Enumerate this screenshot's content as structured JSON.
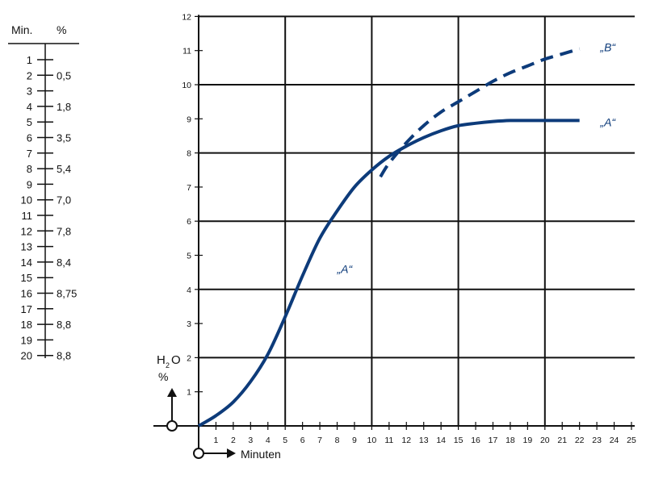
{
  "chart_data": {
    "type": "line",
    "xlabel": "Minuten",
    "ylabel_main": "H",
    "ylabel_sub": "2",
    "ylabel_tail": "O",
    "ylabel_unit": "%",
    "xlim": [
      0,
      25
    ],
    "ylim": [
      0,
      12
    ],
    "x_ticks": [
      "1",
      "2",
      "3",
      "4",
      "5",
      "6",
      "7",
      "8",
      "9",
      "10",
      "11",
      "12",
      "13",
      "14",
      "15",
      "16",
      "17",
      "18",
      "19",
      "20",
      "21",
      "22",
      "23",
      "24",
      "25"
    ],
    "y_ticks": [
      "1",
      "2",
      "3",
      "4",
      "5",
      "6",
      "7",
      "8",
      "9",
      "10",
      "11",
      "12"
    ],
    "grid": true,
    "series": [
      {
        "name": "„A“",
        "style": "solid",
        "color": "#0d3b7a",
        "x": [
          0,
          1,
          2,
          3,
          4,
          5,
          6,
          7,
          8,
          9,
          10,
          11,
          12,
          13,
          14,
          15,
          16,
          17,
          18,
          19,
          20,
          21,
          22
        ],
        "y": [
          0,
          0.3,
          0.7,
          1.3,
          2.1,
          3.2,
          4.4,
          5.5,
          6.3,
          7.0,
          7.5,
          7.9,
          8.2,
          8.45,
          8.65,
          8.8,
          8.87,
          8.92,
          8.95,
          8.95,
          8.95,
          8.95,
          8.95
        ]
      },
      {
        "name": "„B“",
        "style": "dashed",
        "color": "#0d3b7a",
        "x": [
          10.5,
          11,
          12,
          13,
          14,
          15,
          16,
          17,
          18,
          19,
          20,
          21,
          22
        ],
        "y": [
          7.3,
          7.7,
          8.3,
          8.8,
          9.2,
          9.5,
          9.8,
          10.1,
          10.35,
          10.55,
          10.75,
          10.9,
          11.05
        ]
      }
    ],
    "annotations": [
      {
        "label": "„A“",
        "x": 8.0,
        "y": 4.6
      },
      {
        "label": "„A“",
        "x": 23.2,
        "y": 8.9
      },
      {
        "label": "„B“",
        "x": 23.2,
        "y": 11.1
      }
    ]
  },
  "table": {
    "header_min": "Min.",
    "header_pct": "%",
    "rows": [
      {
        "min": "1",
        "pct": ""
      },
      {
        "min": "2",
        "pct": "0,5"
      },
      {
        "min": "3",
        "pct": ""
      },
      {
        "min": "4",
        "pct": "1,8"
      },
      {
        "min": "5",
        "pct": ""
      },
      {
        "min": "6",
        "pct": "3,5"
      },
      {
        "min": "7",
        "pct": ""
      },
      {
        "min": "8",
        "pct": "5,4"
      },
      {
        "min": "9",
        "pct": ""
      },
      {
        "min": "10",
        "pct": "7,0"
      },
      {
        "min": "11",
        "pct": ""
      },
      {
        "min": "12",
        "pct": "7,8"
      },
      {
        "min": "13",
        "pct": ""
      },
      {
        "min": "14",
        "pct": "8,4"
      },
      {
        "min": "15",
        "pct": ""
      },
      {
        "min": "16",
        "pct": "8,75"
      },
      {
        "min": "17",
        "pct": ""
      },
      {
        "min": "18",
        "pct": "8,8"
      },
      {
        "min": "19",
        "pct": ""
      },
      {
        "min": "20",
        "pct": "8,8"
      }
    ]
  }
}
